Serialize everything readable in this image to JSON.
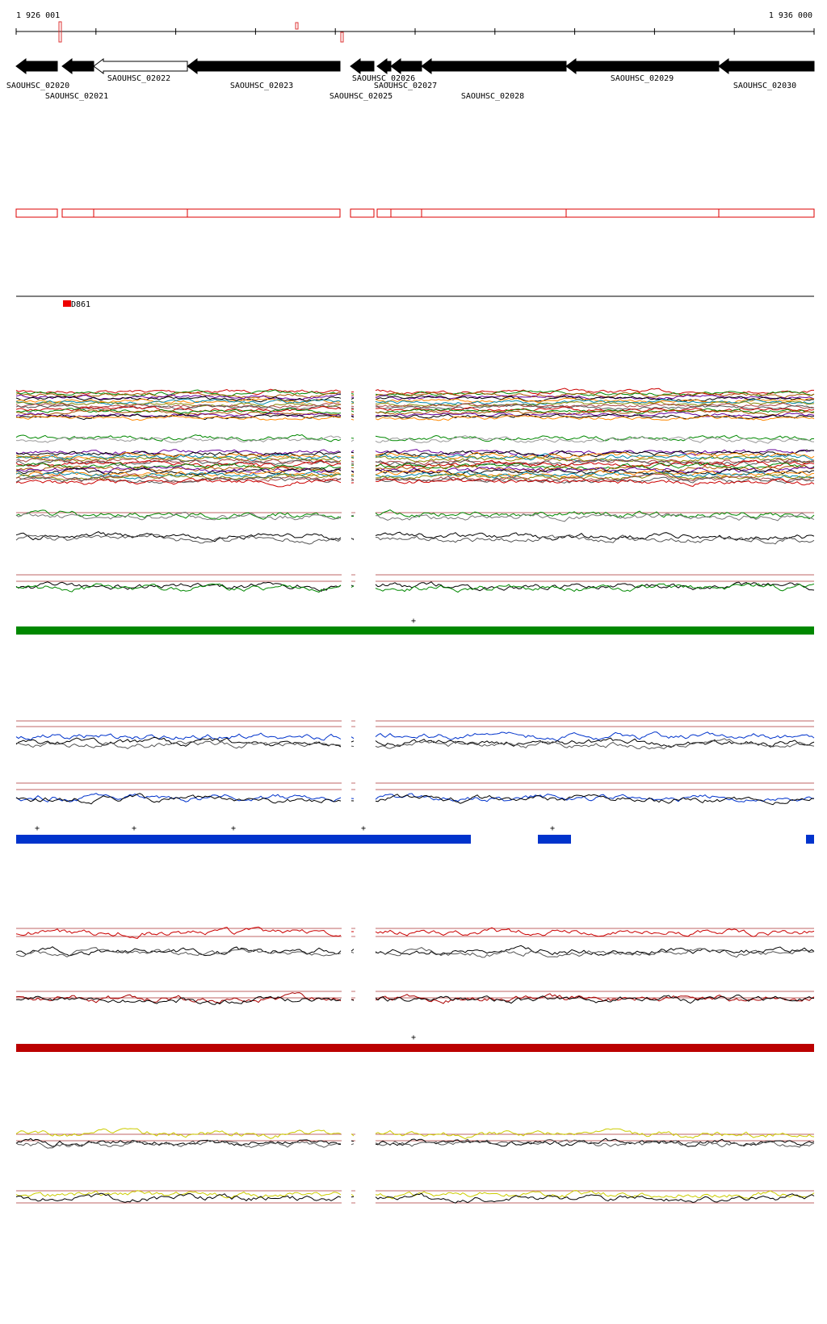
{
  "ruler": {
    "start": "1 926 001",
    "end": "1 936 000"
  },
  "genes": [
    "SAOUHSC_02020",
    "SAOUHSC_02021",
    "SAOUHSC_02022",
    "SAOUHSC_02023",
    "SAOUHSC_02025",
    "SAOUHSC_02026",
    "SAOUHSC_02027",
    "SAOUHSC_02028",
    "SAOUHSC_02029",
    "SAOUHSC_02030"
  ],
  "feature": "D861",
  "green_track": {
    "marks": [
      "+"
    ]
  },
  "blue_track": {
    "marks": [
      "+",
      "+",
      "+",
      "+",
      "+"
    ]
  },
  "red_track": {
    "marks": [
      "+"
    ]
  }
}
